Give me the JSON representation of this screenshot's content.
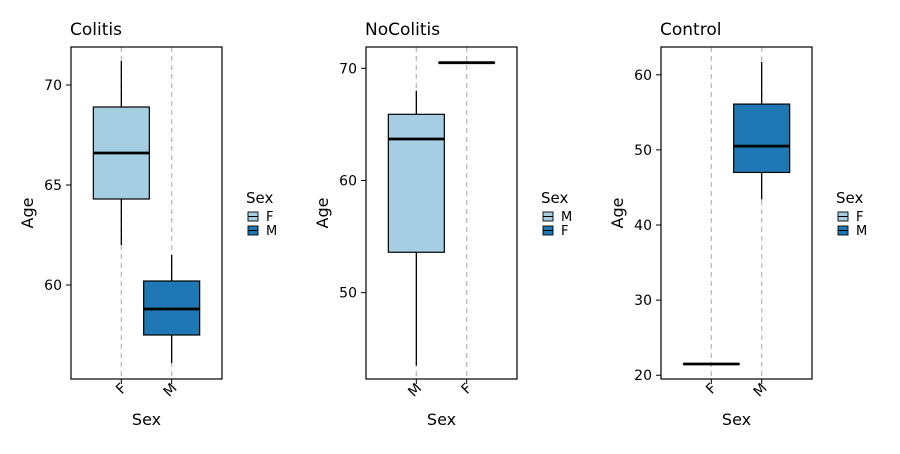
{
  "chart_data": [
    {
      "type": "box",
      "title": "Colitis",
      "xlabel": "Sex",
      "ylabel": "Age",
      "ylim": [
        55.3,
        71.9
      ],
      "yticks": [
        60,
        65,
        70
      ],
      "categories": [
        "F",
        "M"
      ],
      "boxes": [
        {
          "category": "F",
          "min": 62.0,
          "q1": 64.3,
          "median": 66.6,
          "q3": 68.9,
          "max": 71.2,
          "fill": "#a6cee3"
        },
        {
          "category": "M",
          "min": 56.1,
          "q1": 57.5,
          "median": 58.8,
          "q3": 60.2,
          "max": 61.5,
          "fill": "#1f78b4"
        }
      ],
      "legend": {
        "title": "Sex",
        "items": [
          {
            "label": "F",
            "color": "#a6cee3"
          },
          {
            "label": "M",
            "color": "#1f78b4"
          }
        ]
      },
      "grid": false
    },
    {
      "type": "box",
      "title": "NoColitis",
      "xlabel": "Sex",
      "ylabel": "Age",
      "ylim": [
        42.3,
        71.9
      ],
      "yticks": [
        50,
        60,
        70
      ],
      "categories": [
        "M",
        "F"
      ],
      "boxes": [
        {
          "category": "M",
          "min": 43.5,
          "q1": 53.6,
          "median": 63.7,
          "q3": 65.9,
          "max": 68.0,
          "fill": "#a6cee3"
        },
        {
          "category": "F",
          "min": 70.5,
          "q1": 70.5,
          "median": 70.5,
          "q3": 70.5,
          "max": 70.5,
          "fill": "#1f78b4"
        }
      ],
      "legend": {
        "title": "Sex",
        "items": [
          {
            "label": "M",
            "color": "#a6cee3"
          },
          {
            "label": "F",
            "color": "#1f78b4"
          }
        ]
      },
      "grid": false
    },
    {
      "type": "box",
      "title": "Control",
      "xlabel": "Sex",
      "ylabel": "Age",
      "ylim": [
        19.5,
        63.7
      ],
      "yticks": [
        20,
        30,
        40,
        50,
        60
      ],
      "categories": [
        "F",
        "M"
      ],
      "boxes": [
        {
          "category": "F",
          "min": 21.5,
          "q1": 21.5,
          "median": 21.5,
          "q3": 21.5,
          "max": 21.5,
          "fill": "#a6cee3"
        },
        {
          "category": "M",
          "min": 43.4,
          "q1": 47.0,
          "median": 50.5,
          "q3": 56.1,
          "max": 61.7,
          "fill": "#1f78b4"
        }
      ],
      "legend": {
        "title": "Sex",
        "items": [
          {
            "label": "F",
            "color": "#a6cee3"
          },
          {
            "label": "M",
            "color": "#1f78b4"
          }
        ]
      },
      "grid": false
    }
  ]
}
